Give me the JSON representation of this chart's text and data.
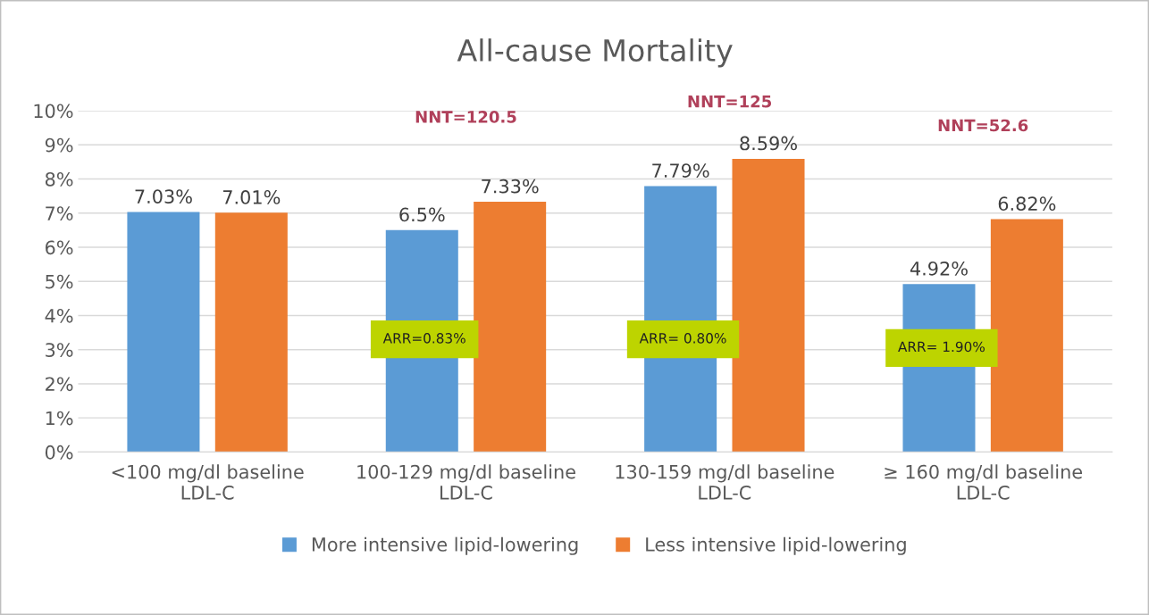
{
  "chart_data": {
    "type": "bar",
    "title": "All-cause Mortality",
    "categories": [
      "<100 mg/dl baseline\nLDL-C",
      "100-129 mg/dl baseline\nLDL-C",
      "130-159 mg/dl baseline\nLDL-C",
      "≥ 160 mg/dl baseline\nLDL-C"
    ],
    "series": [
      {
        "name": "More intensive lipid-lowering",
        "color": "#5b9bd5",
        "values": [
          7.03,
          6.5,
          7.79,
          4.92
        ],
        "value_labels": [
          "7.03%",
          "6.5%",
          "7.79%",
          "4.92%"
        ]
      },
      {
        "name": "Less intensive lipid-lowering",
        "color": "#ed7d31",
        "values": [
          7.01,
          7.33,
          8.59,
          6.82
        ],
        "value_labels": [
          "7.01%",
          "7.33%",
          "8.59%",
          "6.82%"
        ]
      }
    ],
    "ylim": [
      0,
      10
    ],
    "yticks": [
      {
        "value": 0,
        "label": "0%"
      },
      {
        "value": 1,
        "label": "1%"
      },
      {
        "value": 2,
        "label": "2%"
      },
      {
        "value": 3,
        "label": "3%"
      },
      {
        "value": 4,
        "label": "4%"
      },
      {
        "value": 5,
        "label": "5%"
      },
      {
        "value": 6,
        "label": "6%"
      },
      {
        "value": 7,
        "label": "7%"
      },
      {
        "value": 8,
        "label": "8%"
      },
      {
        "value": 9,
        "label": "9%"
      },
      {
        "value": 10,
        "label": "10%"
      }
    ],
    "grid": "y",
    "legend": "bottom",
    "annotations": [
      "NNT=120.5",
      "NNT=125",
      "NNT=52.6",
      "ARR=0.83%",
      "ARR= 0.80%",
      "ARR= 1.90%"
    ]
  }
}
